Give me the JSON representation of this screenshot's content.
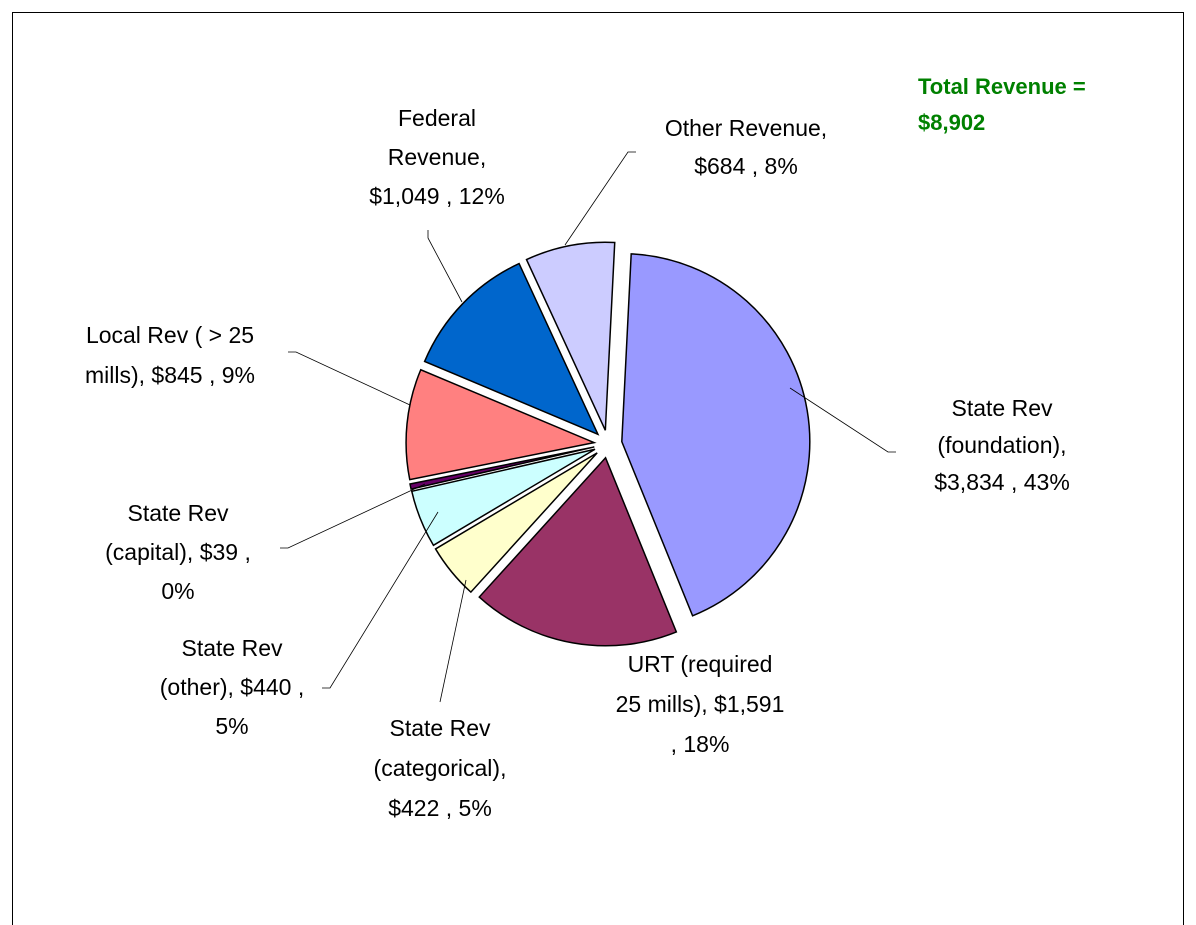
{
  "chart_data": {
    "type": "pie",
    "annotation": [
      "Total Revenue =",
      "$8,902"
    ],
    "values": [
      3834,
      1591,
      422,
      440,
      39,
      845,
      1049,
      684
    ],
    "labels": [
      [
        "State Rev",
        "(foundation),",
        "$3,834 , 43%"
      ],
      [
        "URT (required",
        "25 mills), $1,591",
        ", 18%"
      ],
      [
        "State Rev",
        "(categorical),",
        "$422 , 5%"
      ],
      [
        "State Rev",
        "(other), $440 ,",
        "5%"
      ],
      [
        "State Rev",
        "(capital), $39 ,",
        "0%"
      ],
      [
        "Local Rev ( > 25",
        "mills), $845 , 9%"
      ],
      [
        "Federal",
        "Revenue,",
        "$1,049 , 12%"
      ],
      [
        "Other Revenue,",
        "$684 , 8%"
      ]
    ],
    "colors": [
      "#9999ff",
      "#993366",
      "#ffffcc",
      "#ccffff",
      "#660066",
      "#ff8080",
      "#0066cc",
      "#ccccff"
    ]
  }
}
